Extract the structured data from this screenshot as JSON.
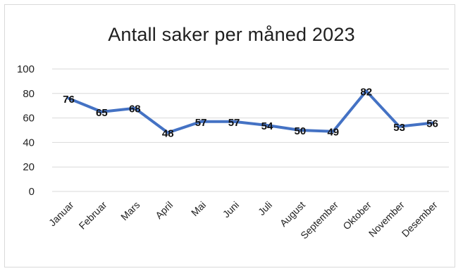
{
  "chart_data": {
    "type": "line",
    "title": "Antall saker per måned 2023",
    "categories": [
      "Januar",
      "Februar",
      "Mars",
      "April",
      "Mai",
      "Juni",
      "Juli",
      "August",
      "September",
      "Oktober",
      "November",
      "Desember"
    ],
    "series": [
      {
        "values": [
          76,
          65,
          68,
          48,
          57,
          57,
          54,
          50,
          49,
          82,
          53,
          56
        ],
        "color": "#4472c4"
      }
    ],
    "yticks": [
      "0",
      "20",
      "40",
      "60",
      "80",
      "100"
    ],
    "ylim": [
      0,
      100
    ],
    "grid": true,
    "data_labels": true,
    "legend": "none"
  }
}
